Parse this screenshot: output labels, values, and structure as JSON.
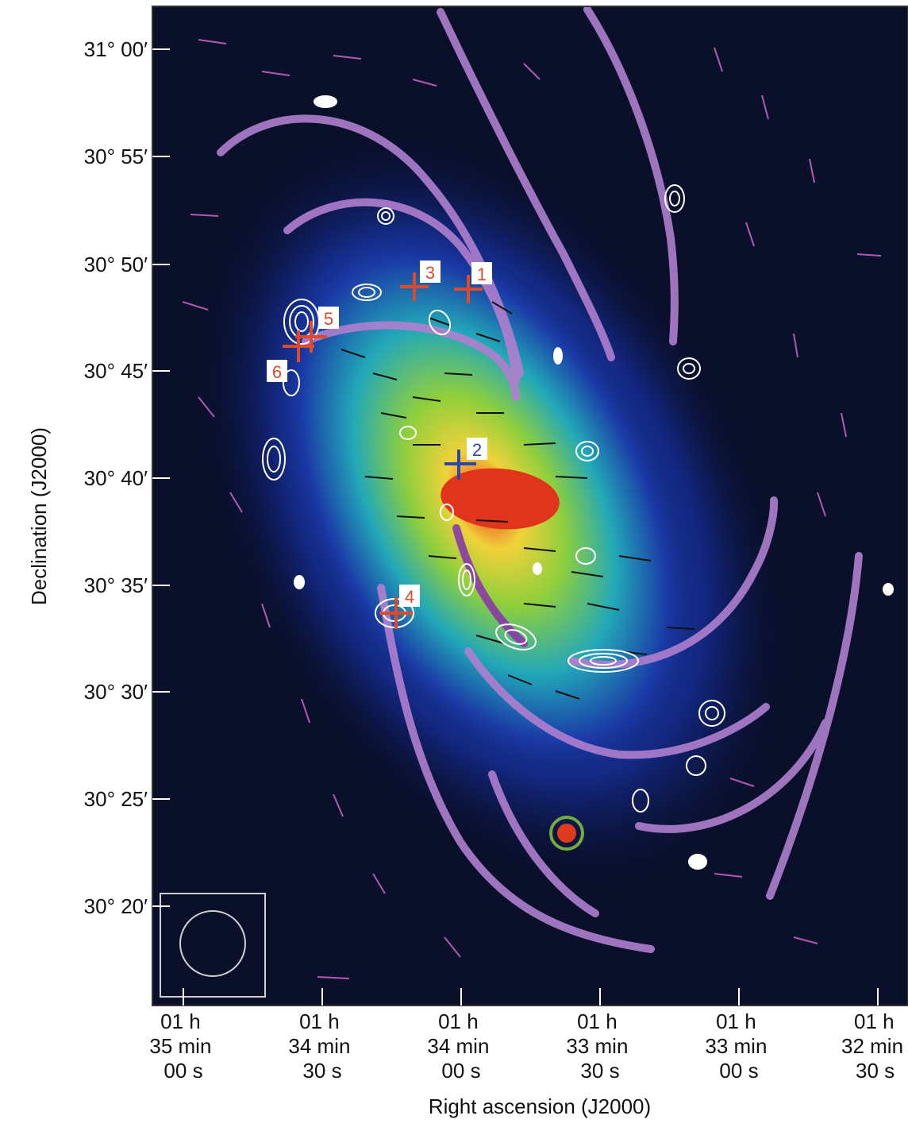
{
  "figure": {
    "y_axis_label": "Declination (J2000)",
    "x_axis_label": "Right ascension (J2000)",
    "y_ticks": [
      "31° 00′",
      "30° 55′",
      "30° 50′",
      "30° 45′",
      "30° 40′",
      "30° 35′",
      "30° 30′",
      "30° 25′",
      "30° 20′"
    ],
    "x_ticks": [
      [
        "01 h",
        "35 min",
        "00 s"
      ],
      [
        "01 h",
        "34 min",
        "30 s"
      ],
      [
        "01 h",
        "34 min",
        "00 s"
      ],
      [
        "01 h",
        "33 min",
        "30 s"
      ],
      [
        "01 h",
        "33 min",
        "00 s"
      ],
      [
        "01 h",
        "32 min",
        "30 s"
      ]
    ],
    "markers": [
      {
        "label": "1",
        "color": "#e04a2a"
      },
      {
        "label": "2",
        "color": "#2a48a8"
      },
      {
        "label": "3",
        "color": "#e04a2a"
      },
      {
        "label": "4",
        "color": "#e04a2a"
      },
      {
        "label": "5",
        "color": "#e04a2a"
      },
      {
        "label": "6",
        "color": "#e04a2a"
      }
    ],
    "colors": {
      "background": "#0a0f2a",
      "arm": "#b07fcf",
      "vector_black": "#111111",
      "vector_magenta": "#b05ab0",
      "contour": "#ffffff"
    }
  }
}
